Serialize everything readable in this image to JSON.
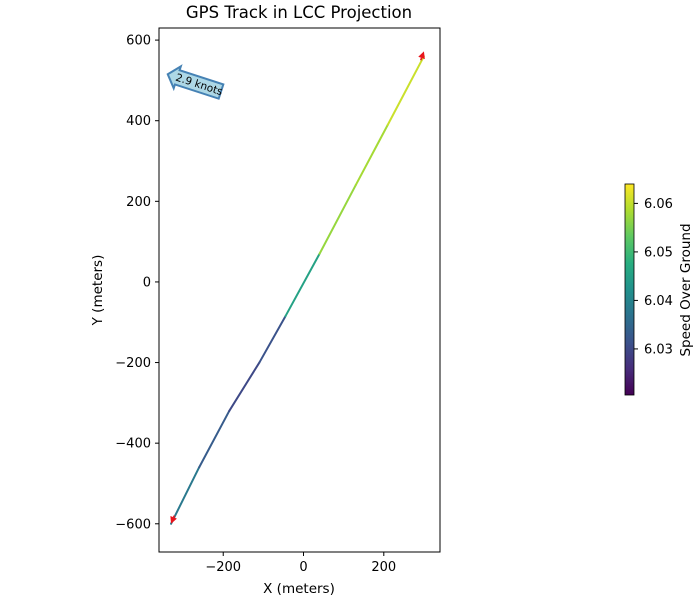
{
  "chart_data": {
    "type": "line",
    "title": "GPS Track in LCC Projection",
    "xlabel": "X (meters)",
    "ylabel": "Y (meters)",
    "xlim": [
      -360,
      340
    ],
    "ylim": [
      -670,
      630
    ],
    "xticks": [
      -200,
      0,
      200
    ],
    "yticks": [
      -600,
      -400,
      -200,
      0,
      200,
      400,
      600
    ],
    "grid": false,
    "series": [
      {
        "points": [
          {
            "x": -330,
            "y": -600,
            "speed": 6.04
          },
          {
            "x": -260,
            "y": -460,
            "speed": 6.036
          },
          {
            "x": -185,
            "y": -320,
            "speed": 6.03
          },
          {
            "x": -110,
            "y": -200,
            "speed": 6.03
          },
          {
            "x": -45,
            "y": -85,
            "speed": 6.033
          },
          {
            "x": 40,
            "y": 70,
            "speed": 6.058
          },
          {
            "x": 130,
            "y": 240,
            "speed": 6.056
          },
          {
            "x": 210,
            "y": 390,
            "speed": 6.06
          },
          {
            "x": 300,
            "y": 560,
            "speed": 6.061
          }
        ]
      }
    ],
    "direction_arrows": [
      {
        "x": -322,
        "y": -580,
        "dx": -8,
        "dy": -20,
        "color": "#e8141c"
      },
      {
        "x": 292,
        "y": 550,
        "dx": 8,
        "dy": 22,
        "color": "#e8141c"
      }
    ],
    "annotation": {
      "text": "2.9 knots",
      "x": -260,
      "y": 490,
      "rotation_deg": 18,
      "fill": "#add8e6",
      "edge": "#4682b4"
    },
    "colorbar": {
      "label": "Speed Over Ground",
      "colormap": "viridis",
      "range": [
        6.0205,
        6.064
      ],
      "ticks": [
        6.03,
        6.04,
        6.05,
        6.06
      ]
    }
  }
}
